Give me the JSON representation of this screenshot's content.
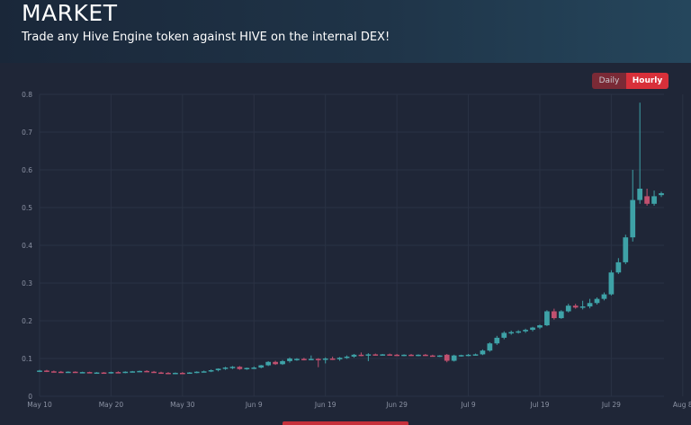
{
  "header": {
    "title": "MARKET",
    "subtitle": "Trade any Hive Engine token against HIVE on the internal DEX!"
  },
  "toggle": {
    "options": [
      "Daily",
      "Hourly"
    ],
    "selected": "Hourly"
  },
  "colors": {
    "up": "#3ea2a7",
    "down": "#c1506f",
    "grid": "#2a3244",
    "accent": "#d8303a"
  },
  "chart_data": {
    "type": "candlestick",
    "ylim": [
      0,
      0.8
    ],
    "y_ticks": [
      "0",
      "0.1",
      "0.2",
      "0.3",
      "0.4",
      "0.5",
      "0.6",
      "0.7",
      "0.8"
    ],
    "x_ticks": [
      "May 10",
      "May 20",
      "May 30",
      "Jun 9",
      "Jun 19",
      "Jun 29",
      "Jul 9",
      "Jul 19",
      "Jul 29",
      "Aug 8"
    ],
    "grid": true,
    "candles": [
      {
        "date": "May 10",
        "o": 0.066,
        "h": 0.07,
        "l": 0.064,
        "c": 0.068
      },
      {
        "date": "May 11",
        "o": 0.068,
        "h": 0.07,
        "l": 0.064,
        "c": 0.066
      },
      {
        "date": "May 12",
        "o": 0.066,
        "h": 0.068,
        "l": 0.064,
        "c": 0.065
      },
      {
        "date": "May 13",
        "o": 0.065,
        "h": 0.067,
        "l": 0.063,
        "c": 0.064
      },
      {
        "date": "May 14",
        "o": 0.064,
        "h": 0.066,
        "l": 0.062,
        "c": 0.065
      },
      {
        "date": "May 15",
        "o": 0.065,
        "h": 0.066,
        "l": 0.062,
        "c": 0.063
      },
      {
        "date": "May 16",
        "o": 0.063,
        "h": 0.065,
        "l": 0.061,
        "c": 0.064
      },
      {
        "date": "May 17",
        "o": 0.064,
        "h": 0.065,
        "l": 0.061,
        "c": 0.062
      },
      {
        "date": "May 18",
        "o": 0.062,
        "h": 0.064,
        "l": 0.06,
        "c": 0.063
      },
      {
        "date": "May 19",
        "o": 0.063,
        "h": 0.064,
        "l": 0.06,
        "c": 0.062
      },
      {
        "date": "May 20",
        "o": 0.062,
        "h": 0.065,
        "l": 0.06,
        "c": 0.064
      },
      {
        "date": "May 21",
        "o": 0.064,
        "h": 0.066,
        "l": 0.062,
        "c": 0.063
      },
      {
        "date": "May 22",
        "o": 0.063,
        "h": 0.066,
        "l": 0.061,
        "c": 0.065
      },
      {
        "date": "May 23",
        "o": 0.065,
        "h": 0.067,
        "l": 0.063,
        "c": 0.066
      },
      {
        "date": "May 24",
        "o": 0.066,
        "h": 0.068,
        "l": 0.064,
        "c": 0.067
      },
      {
        "date": "May 25",
        "o": 0.067,
        "h": 0.069,
        "l": 0.064,
        "c": 0.065
      },
      {
        "date": "May 26",
        "o": 0.065,
        "h": 0.067,
        "l": 0.062,
        "c": 0.063
      },
      {
        "date": "May 27",
        "o": 0.063,
        "h": 0.065,
        "l": 0.06,
        "c": 0.062
      },
      {
        "date": "May 28",
        "o": 0.062,
        "h": 0.064,
        "l": 0.059,
        "c": 0.061
      },
      {
        "date": "May 29",
        "o": 0.061,
        "h": 0.063,
        "l": 0.059,
        "c": 0.062
      },
      {
        "date": "May 30",
        "o": 0.062,
        "h": 0.064,
        "l": 0.059,
        "c": 0.061
      },
      {
        "date": "May 31",
        "o": 0.061,
        "h": 0.064,
        "l": 0.06,
        "c": 0.063
      },
      {
        "date": "Jun 1",
        "o": 0.063,
        "h": 0.066,
        "l": 0.061,
        "c": 0.065
      },
      {
        "date": "Jun 2",
        "o": 0.065,
        "h": 0.068,
        "l": 0.063,
        "c": 0.066
      },
      {
        "date": "Jun 3",
        "o": 0.066,
        "h": 0.071,
        "l": 0.064,
        "c": 0.069
      },
      {
        "date": "Jun 4",
        "o": 0.069,
        "h": 0.074,
        "l": 0.066,
        "c": 0.073
      },
      {
        "date": "Jun 5",
        "o": 0.073,
        "h": 0.078,
        "l": 0.07,
        "c": 0.076
      },
      {
        "date": "Jun 6",
        "o": 0.076,
        "h": 0.08,
        "l": 0.072,
        "c": 0.078
      },
      {
        "date": "Jun 7",
        "o": 0.078,
        "h": 0.08,
        "l": 0.07,
        "c": 0.072
      },
      {
        "date": "Jun 8",
        "o": 0.072,
        "h": 0.076,
        "l": 0.07,
        "c": 0.075
      },
      {
        "date": "Jun 9",
        "o": 0.075,
        "h": 0.079,
        "l": 0.072,
        "c": 0.076
      },
      {
        "date": "Jun 10",
        "o": 0.076,
        "h": 0.083,
        "l": 0.074,
        "c": 0.082
      },
      {
        "date": "Jun 11",
        "o": 0.082,
        "h": 0.093,
        "l": 0.08,
        "c": 0.091
      },
      {
        "date": "Jun 12",
        "o": 0.091,
        "h": 0.094,
        "l": 0.083,
        "c": 0.085
      },
      {
        "date": "Jun 13",
        "o": 0.085,
        "h": 0.096,
        "l": 0.083,
        "c": 0.093
      },
      {
        "date": "Jun 14",
        "o": 0.093,
        "h": 0.103,
        "l": 0.089,
        "c": 0.1
      },
      {
        "date": "Jun 15",
        "o": 0.097,
        "h": 0.101,
        "l": 0.094,
        "c": 0.099
      },
      {
        "date": "Jun 16",
        "o": 0.099,
        "h": 0.102,
        "l": 0.095,
        "c": 0.098
      },
      {
        "date": "Jun 17",
        "o": 0.098,
        "h": 0.108,
        "l": 0.096,
        "c": 0.099
      },
      {
        "date": "Jun 18",
        "o": 0.099,
        "h": 0.101,
        "l": 0.077,
        "c": 0.097
      },
      {
        "date": "Jun 19",
        "o": 0.097,
        "h": 0.103,
        "l": 0.087,
        "c": 0.1
      },
      {
        "date": "Jun 20",
        "o": 0.1,
        "h": 0.105,
        "l": 0.096,
        "c": 0.098
      },
      {
        "date": "Jun 21",
        "o": 0.098,
        "h": 0.104,
        "l": 0.094,
        "c": 0.102
      },
      {
        "date": "Jun 22",
        "o": 0.102,
        "h": 0.108,
        "l": 0.099,
        "c": 0.105
      },
      {
        "date": "Jun 23",
        "o": 0.105,
        "h": 0.112,
        "l": 0.102,
        "c": 0.11
      },
      {
        "date": "Jun 24",
        "o": 0.11,
        "h": 0.116,
        "l": 0.106,
        "c": 0.108
      },
      {
        "date": "Jun 25",
        "o": 0.108,
        "h": 0.114,
        "l": 0.093,
        "c": 0.111
      },
      {
        "date": "Jun 26",
        "o": 0.111,
        "h": 0.113,
        "l": 0.108,
        "c": 0.11
      },
      {
        "date": "Jun 27",
        "o": 0.11,
        "h": 0.112,
        "l": 0.108,
        "c": 0.111
      },
      {
        "date": "Jun 28",
        "o": 0.111,
        "h": 0.113,
        "l": 0.108,
        "c": 0.11
      },
      {
        "date": "Jun 29",
        "o": 0.11,
        "h": 0.112,
        "l": 0.107,
        "c": 0.109
      },
      {
        "date": "Jun 30",
        "o": 0.109,
        "h": 0.111,
        "l": 0.106,
        "c": 0.11
      },
      {
        "date": "Jul 1",
        "o": 0.11,
        "h": 0.112,
        "l": 0.107,
        "c": 0.109
      },
      {
        "date": "Jul 2",
        "o": 0.109,
        "h": 0.111,
        "l": 0.106,
        "c": 0.11
      },
      {
        "date": "Jul 3",
        "o": 0.11,
        "h": 0.112,
        "l": 0.107,
        "c": 0.108
      },
      {
        "date": "Jul 4",
        "o": 0.108,
        "h": 0.11,
        "l": 0.105,
        "c": 0.107
      },
      {
        "date": "Jul 5",
        "o": 0.107,
        "h": 0.109,
        "l": 0.104,
        "c": 0.108
      },
      {
        "date": "Jul 6",
        "o": 0.11,
        "h": 0.112,
        "l": 0.09,
        "c": 0.094
      },
      {
        "date": "Jul 7",
        "o": 0.094,
        "h": 0.11,
        "l": 0.092,
        "c": 0.108
      },
      {
        "date": "Jul 8",
        "o": 0.108,
        "h": 0.11,
        "l": 0.105,
        "c": 0.109
      },
      {
        "date": "Jul 9",
        "o": 0.109,
        "h": 0.112,
        "l": 0.106,
        "c": 0.11
      },
      {
        "date": "Jul 10",
        "o": 0.11,
        "h": 0.113,
        "l": 0.108,
        "c": 0.111
      },
      {
        "date": "Jul 11",
        "o": 0.111,
        "h": 0.124,
        "l": 0.109,
        "c": 0.121
      },
      {
        "date": "Jul 12",
        "o": 0.121,
        "h": 0.143,
        "l": 0.118,
        "c": 0.14
      },
      {
        "date": "Jul 13",
        "o": 0.14,
        "h": 0.16,
        "l": 0.136,
        "c": 0.155
      },
      {
        "date": "Jul 14",
        "o": 0.155,
        "h": 0.172,
        "l": 0.151,
        "c": 0.168
      },
      {
        "date": "Jul 15",
        "o": 0.168,
        "h": 0.174,
        "l": 0.163,
        "c": 0.17
      },
      {
        "date": "Jul 16",
        "o": 0.17,
        "h": 0.175,
        "l": 0.166,
        "c": 0.172
      },
      {
        "date": "Jul 17",
        "o": 0.172,
        "h": 0.179,
        "l": 0.168,
        "c": 0.176
      },
      {
        "date": "Jul 18",
        "o": 0.176,
        "h": 0.184,
        "l": 0.172,
        "c": 0.182
      },
      {
        "date": "Jul 19",
        "o": 0.182,
        "h": 0.19,
        "l": 0.178,
        "c": 0.188
      },
      {
        "date": "Jul 20",
        "o": 0.188,
        "h": 0.228,
        "l": 0.186,
        "c": 0.225
      },
      {
        "date": "Jul 21",
        "o": 0.225,
        "h": 0.232,
        "l": 0.203,
        "c": 0.207
      },
      {
        "date": "Jul 22",
        "o": 0.207,
        "h": 0.228,
        "l": 0.205,
        "c": 0.225
      },
      {
        "date": "Jul 23",
        "o": 0.225,
        "h": 0.245,
        "l": 0.222,
        "c": 0.24
      },
      {
        "date": "Jul 24",
        "o": 0.24,
        "h": 0.245,
        "l": 0.232,
        "c": 0.235
      },
      {
        "date": "Jul 25",
        "o": 0.235,
        "h": 0.253,
        "l": 0.23,
        "c": 0.238
      },
      {
        "date": "Jul 26",
        "o": 0.238,
        "h": 0.258,
        "l": 0.233,
        "c": 0.247
      },
      {
        "date": "Jul 27",
        "o": 0.247,
        "h": 0.262,
        "l": 0.243,
        "c": 0.258
      },
      {
        "date": "Jul 28",
        "o": 0.258,
        "h": 0.275,
        "l": 0.254,
        "c": 0.27
      },
      {
        "date": "Jul 29",
        "o": 0.27,
        "h": 0.334,
        "l": 0.267,
        "c": 0.328
      },
      {
        "date": "Jul 30",
        "o": 0.328,
        "h": 0.366,
        "l": 0.324,
        "c": 0.355
      },
      {
        "date": "Jul 31",
        "o": 0.355,
        "h": 0.428,
        "l": 0.35,
        "c": 0.421
      },
      {
        "date": "Aug 1",
        "o": 0.421,
        "h": 0.6,
        "l": 0.41,
        "c": 0.52
      },
      {
        "date": "Aug 2",
        "o": 0.52,
        "h": 0.778,
        "l": 0.51,
        "c": 0.55
      },
      {
        "date": "Aug 3",
        "o": 0.53,
        "h": 0.55,
        "l": 0.505,
        "c": 0.51
      },
      {
        "date": "Aug 4",
        "o": 0.51,
        "h": 0.545,
        "l": 0.505,
        "c": 0.53
      },
      {
        "date": "Aug 5",
        "o": 0.533,
        "h": 0.542,
        "l": 0.528,
        "c": 0.538
      }
    ]
  }
}
